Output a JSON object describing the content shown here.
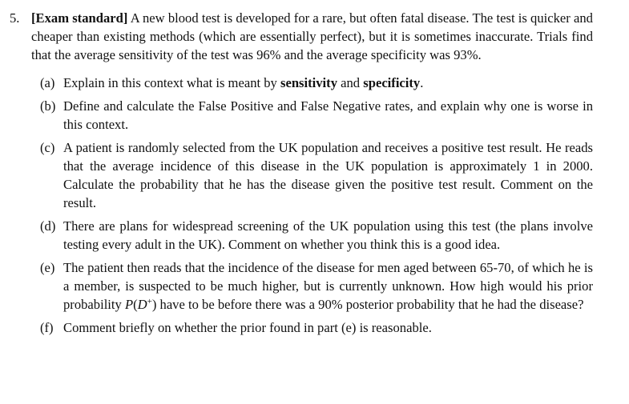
{
  "question": {
    "number": "5.",
    "tag": "[Exam standard]",
    "intro": " A new blood test is developed for a rare, but often fatal disease. The test is quicker and cheaper than existing methods (which are essentially perfect), but it is sometimes inaccurate. Trials find that the average sensitivity of the test was 96% and the average specificity was 93%."
  },
  "parts": {
    "a": {
      "label": "(a)",
      "text_1": "Explain in this context what is meant by ",
      "term_1": "sensitivity",
      "text_2": " and ",
      "term_2": "specificity",
      "text_3": "."
    },
    "b": {
      "label": "(b)",
      "text": "Define and calculate the False Positive and False Negative rates, and explain why one is worse in this context."
    },
    "c": {
      "label": "(c)",
      "text": "A patient is randomly selected from the UK population and receives a positive test result. He reads that the average incidence of this disease in the UK population is approximately 1 in 2000. Calculate the probability that he has the disease given the positive test result. Comment on the result."
    },
    "d": {
      "label": "(d)",
      "text": "There are plans for widespread screening of the UK population using this test (the plans involve testing every adult in the UK). Comment on whether you think this is a good idea."
    },
    "e": {
      "label": "(e)",
      "text_1": "The patient then reads that the incidence of the disease for men aged between 65-70, of which he is a member, is suspected to be much higher, but is currently unknown. How high would his prior probability ",
      "math_p": "P",
      "math_open": "(",
      "math_d": "D",
      "math_sup": "+",
      "math_close": ")",
      "text_2": " have to be before there was a 90% posterior probability that he had the disease?"
    },
    "f": {
      "label": "(f)",
      "text": "Comment briefly on whether the prior found in part (e) is reasonable."
    }
  }
}
